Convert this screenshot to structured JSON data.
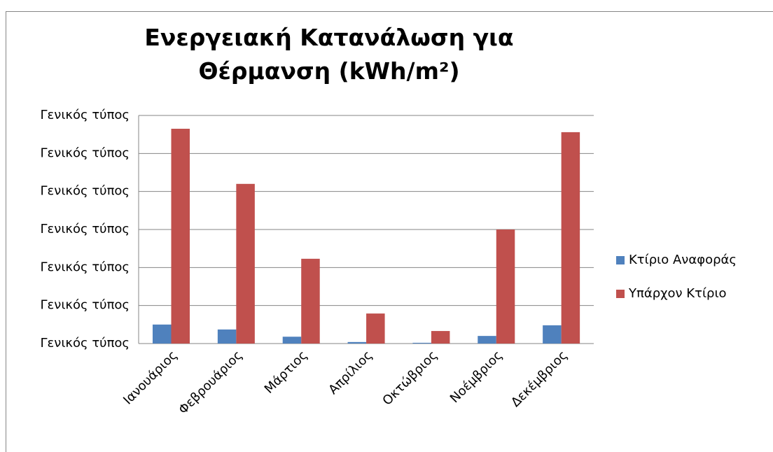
{
  "chart_data": {
    "type": "bar",
    "title": "Ενεργειακή Κατανάλωση για Θέρμανση (kWh/m²)",
    "categories": [
      "Ιανουάριος",
      "Φεβρουάριος",
      "Μάρτιος",
      "Απρίλιος",
      "Οκτώβριος",
      "Νοέμβριος",
      "Δεκέμβριος"
    ],
    "series": [
      {
        "name": "Κτίριο Αναφοράς",
        "color": "#4f81bd",
        "values": [
          0.5,
          0.37,
          0.18,
          0.04,
          0.02,
          0.2,
          0.48
        ]
      },
      {
        "name": "Υπάρχον Κτίριο",
        "color": "#c0504d",
        "values": [
          5.65,
          4.2,
          2.23,
          0.79,
          0.33,
          3.0,
          5.56
        ]
      }
    ],
    "ylim": [
      0,
      6
    ],
    "yticks": [
      {
        "value": 0,
        "label": "Γενικός τύπος"
      },
      {
        "value": 1,
        "label": "Γενικός τύπος"
      },
      {
        "value": 2,
        "label": "Γενικός τύπος"
      },
      {
        "value": 3,
        "label": "Γενικός τύπος"
      },
      {
        "value": 4,
        "label": "Γενικός τύπος"
      },
      {
        "value": 5,
        "label": "Γενικός τύπος"
      },
      {
        "value": 6,
        "label": "Γενικός τύπος"
      }
    ],
    "grid": true,
    "legend": "right"
  }
}
